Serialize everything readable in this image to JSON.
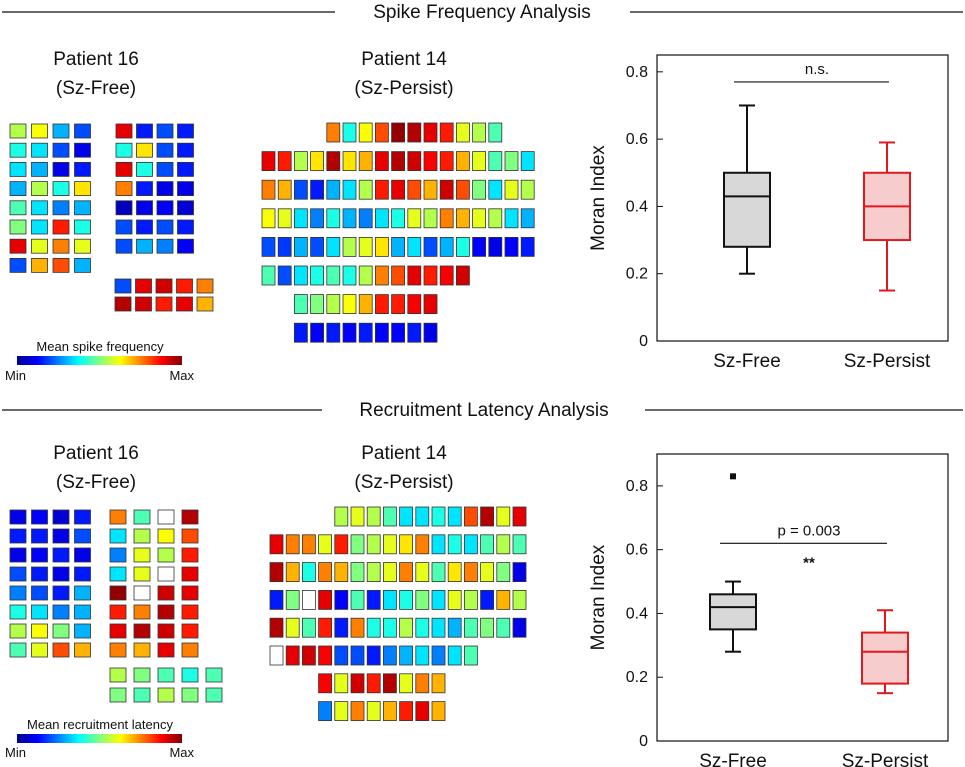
{
  "sections": [
    {
      "title": "Spike Frequency Analysis",
      "patients": [
        {
          "name": "Patient 16",
          "group": "(Sz-Free)"
        },
        {
          "name": "Patient 14",
          "group": "(Sz-Persist)"
        }
      ],
      "colorbar": {
        "label": "Mean spike frequency",
        "min": "Min",
        "max": "Max"
      }
    },
    {
      "title": "Recruitment Latency Analysis",
      "patients": [
        {
          "name": "Patient 16",
          "group": "(Sz-Free)"
        },
        {
          "name": "Patient 14",
          "group": "(Sz-Persist)"
        }
      ],
      "colorbar": {
        "label": "Mean recruitment latency",
        "min": "Min",
        "max": "Max"
      }
    }
  ],
  "colors": {
    "sz_free": "#111111",
    "sz_free_fill": "#d8d8d8",
    "sz_persist": "#e0191e",
    "sz_persist_fill": "#f6cccd"
  },
  "chart_data": [
    {
      "type": "box",
      "title": "Spike Frequency Analysis",
      "ylabel": "Moran Index",
      "ylim": [
        0,
        0.85
      ],
      "yticks": [
        "0",
        "0.2",
        "0.4",
        "0.6",
        "0.8"
      ],
      "categories": [
        "Sz-Free",
        "Sz-Persist"
      ],
      "boxes": [
        {
          "name": "Sz-Free",
          "min": 0.2,
          "q1": 0.28,
          "median": 0.43,
          "q3": 0.5,
          "max": 0.7,
          "outliers": []
        },
        {
          "name": "Sz-Persist",
          "min": 0.15,
          "q1": 0.3,
          "median": 0.4,
          "q3": 0.5,
          "max": 0.59,
          "outliers": []
        }
      ],
      "annotation": {
        "label": "n.s.",
        "stars": "",
        "y": 0.77
      }
    },
    {
      "type": "box",
      "title": "Recruitment Latency Analysis",
      "ylabel": "Moran Index",
      "ylim": [
        0,
        0.9
      ],
      "yticks": [
        "0",
        "0.2",
        "0.4",
        "0.6",
        "0.8"
      ],
      "categories": [
        "Sz-Free",
        "Sz-Persist"
      ],
      "boxes": [
        {
          "name": "Sz-Free",
          "min": 0.28,
          "q1": 0.35,
          "median": 0.42,
          "q3": 0.46,
          "max": 0.5,
          "outliers": [
            0.83
          ]
        },
        {
          "name": "Sz-Persist",
          "min": 0.15,
          "q1": 0.18,
          "median": 0.28,
          "q3": 0.34,
          "max": 0.41,
          "outliers": []
        }
      ],
      "annotation": {
        "label": "p = 0.003",
        "stars": "**",
        "y": 0.62
      }
    }
  ],
  "grids": {
    "s1_p16_a": [
      [
        0.55,
        0.62,
        0.3,
        0.2
      ],
      [
        0.4,
        0.35,
        0.2,
        0.1
      ],
      [
        0.35,
        0.3,
        0.1,
        0.15
      ],
      [
        0.3,
        0.55,
        0.4,
        0.65
      ],
      [
        0.45,
        0.35,
        0.25,
        0.3
      ],
      [
        0.5,
        0.35,
        0.85,
        0.4
      ],
      [
        0.9,
        0.6,
        0.75,
        0.6
      ],
      [
        0.2,
        0.7,
        0.8,
        0.3
      ]
    ],
    "s1_p16_b": [
      [
        0.9,
        0.15,
        0.2,
        0.15
      ],
      [
        0.4,
        0.65,
        0.2,
        0.15
      ],
      [
        0.9,
        0.4,
        0.2,
        0.15
      ],
      [
        0.75,
        0.15,
        0.1,
        0.1
      ],
      [
        0.05,
        0.1,
        0.12,
        0.08
      ],
      [
        0.2,
        0.15,
        0.2,
        0.15
      ],
      [
        0.2,
        0.3,
        0.25,
        0.12
      ]
    ],
    "s1_p16_c": [
      [
        0.2,
        0.9,
        0.92,
        0.85,
        0.75
      ],
      [
        0.95,
        0.92,
        0.85,
        0.9,
        0.7
      ]
    ],
    "s1_p14": [
      [
        null,
        null,
        null,
        null,
        0.75,
        0.4,
        0.62,
        0.8,
        0.98,
        0.95,
        0.9,
        0.85,
        0.6,
        0.55,
        0.45
      ],
      [
        0.9,
        0.85,
        0.55,
        0.65,
        0.95,
        0.65,
        0.7,
        0.9,
        0.95,
        0.92,
        0.88,
        0.85,
        0.7,
        0.6,
        0.45,
        0.5,
        0.35
      ],
      [
        0.75,
        0.7,
        0.2,
        0.15,
        0.3,
        0.35,
        0.55,
        0.85,
        0.9,
        0.8,
        0.7,
        0.92,
        0.8,
        0.5,
        0.35,
        0.6,
        0.55
      ],
      [
        0.62,
        0.6,
        0.35,
        0.25,
        0.4,
        0.3,
        0.25,
        0.35,
        0.4,
        0.6,
        0.55,
        0.75,
        0.7,
        0.6,
        0.55,
        0.35,
        0.3
      ],
      [
        0.2,
        0.18,
        0.3,
        0.2,
        0.35,
        0.55,
        0.6,
        0.65,
        0.3,
        0.35,
        0.2,
        0.3,
        0.4,
        0.12,
        0.1,
        0.12,
        0.15
      ],
      [
        0.45,
        0.2,
        0.35,
        0.4,
        0.45,
        0.4,
        0.55,
        0.75,
        0.8,
        0.9,
        0.85,
        0.88,
        0.92,
        null,
        null,
        null,
        null
      ],
      [
        null,
        null,
        0.45,
        0.5,
        0.55,
        0.62,
        0.7,
        0.85,
        0.85,
        0.88,
        0.9,
        null,
        null,
        null,
        null,
        null,
        null
      ],
      [
        null,
        null,
        0.15,
        0.12,
        0.15,
        0.12,
        0.15,
        0.12,
        0.12,
        0.15,
        0.1,
        null,
        null,
        null,
        null,
        null,
        null
      ]
    ],
    "s2_p16_a": [
      [
        0.1,
        0.12,
        0.08,
        0.15
      ],
      [
        0.15,
        0.15,
        0.1,
        0.2
      ],
      [
        0.1,
        0.12,
        0.15,
        0.1
      ],
      [
        0.2,
        0.15,
        0.1,
        0.15
      ],
      [
        0.25,
        0.2,
        0.15,
        0.3
      ],
      [
        0.4,
        0.35,
        0.25,
        0.3
      ],
      [
        0.55,
        0.62,
        0.5,
        0.3
      ],
      [
        0.45,
        0.6,
        0.8,
        0.7
      ]
    ],
    "s2_p16_b": [
      [
        0.75,
        0.45,
        null,
        0.95
      ],
      [
        0.35,
        0.55,
        0.62,
        0.8
      ],
      [
        0.25,
        0.6,
        0.55,
        0.85
      ],
      [
        0.35,
        0.6,
        null,
        0.9
      ],
      [
        0.98,
        null,
        0.92,
        0.9
      ],
      [
        0.85,
        0.75,
        0.95,
        0.85
      ],
      [
        0.9,
        0.95,
        0.92,
        0.85
      ],
      [
        0.75,
        0.7,
        0.9,
        0.75
      ]
    ],
    "s2_p16_c": [
      [
        0.55,
        0.5,
        0.45,
        0.4,
        0.45
      ],
      [
        0.5,
        0.45,
        0.55,
        0.5,
        0.45
      ]
    ],
    "s2_p14": [
      [
        null,
        null,
        null,
        null,
        0.55,
        0.6,
        0.55,
        0.45,
        0.35,
        0.35,
        0.4,
        0.35,
        0.8,
        0.95,
        0.6,
        0.9
      ],
      [
        0.9,
        0.75,
        0.75,
        0.6,
        0.85,
        0.5,
        0.55,
        0.6,
        0.65,
        0.75,
        0.35,
        0.4,
        0.35,
        0.45,
        0.55,
        0.45
      ],
      [
        0.95,
        0.7,
        0.4,
        0.75,
        0.7,
        0.5,
        0.55,
        0.6,
        0.75,
        0.6,
        0.45,
        0.65,
        0.75,
        0.6,
        0.5,
        0.1
      ],
      [
        0.15,
        0.5,
        null,
        0.9,
        0.12,
        0.45,
        0.15,
        0.35,
        0.4,
        0.5,
        0.35,
        0.6,
        0.55,
        0.15,
        0.7,
        0.55
      ],
      [
        0.95,
        0.6,
        0.45,
        0.85,
        0.15,
        0.75,
        0.4,
        0.4,
        0.55,
        0.4,
        0.35,
        0.3,
        0.45,
        0.5,
        0.45,
        0.1
      ],
      [
        null,
        0.9,
        0.92,
        0.88,
        0.2,
        0.2,
        0.15,
        0.25,
        0.3,
        0.35,
        0.25,
        0.35,
        0.45,
        null,
        null,
        null
      ],
      [
        null,
        null,
        null,
        0.88,
        0.6,
        0.92,
        0.85,
        0.95,
        0.6,
        0.75,
        0.7,
        null,
        null,
        null,
        null,
        null
      ],
      [
        null,
        null,
        null,
        0.25,
        0.6,
        0.75,
        0.6,
        0.7,
        0.85,
        0.9,
        0.7,
        null,
        null,
        null,
        null,
        null
      ]
    ]
  }
}
